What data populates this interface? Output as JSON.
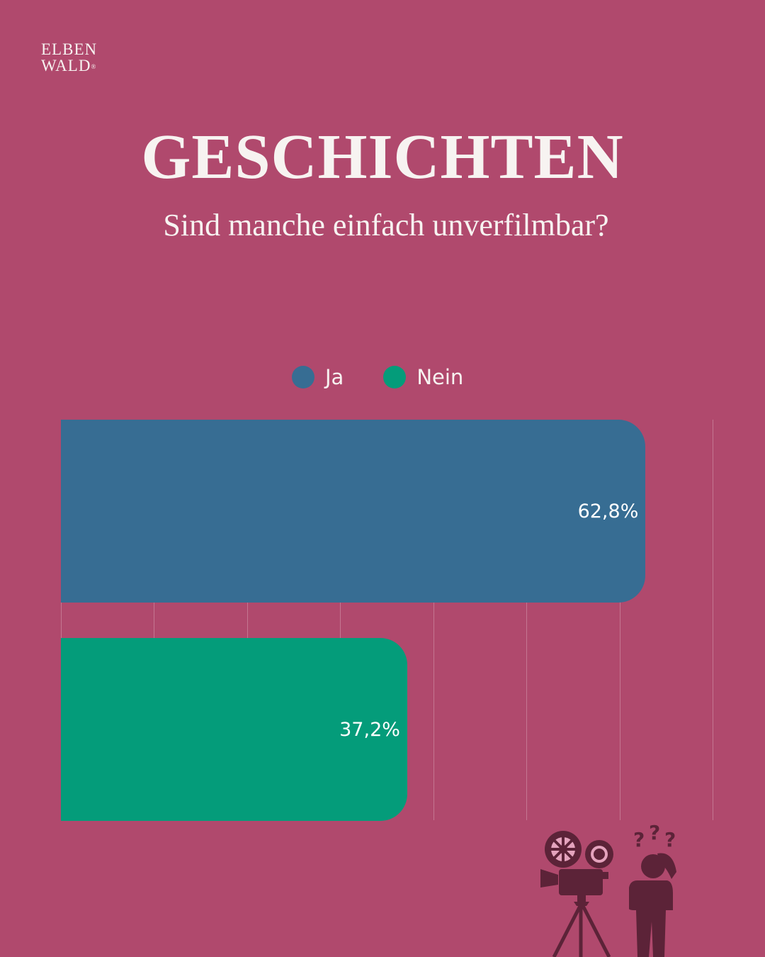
{
  "brand": {
    "line1": "ELBEN",
    "line2": "WALD",
    "mark": "®"
  },
  "header": {
    "title": "GESCHICHTEN",
    "subtitle": "Sind manche einfach unverfilmbar?"
  },
  "legend": [
    {
      "label": "Ja",
      "color": "#376d93"
    },
    {
      "label": "Nein",
      "color": "#049c7a"
    }
  ],
  "colors": {
    "background": "#b0496d",
    "text": "#f7f3f1",
    "illustration": "#5c2338"
  },
  "chart_data": {
    "type": "bar",
    "orientation": "horizontal",
    "title": "GESCHICHTEN",
    "subtitle": "Sind manche einfach unverfilmbar?",
    "categories": [
      "Ja",
      "Nein"
    ],
    "values": [
      62.8,
      37.2
    ],
    "value_labels": [
      "62,8%",
      "37,2%"
    ],
    "colors": [
      "#376d93",
      "#049c7a"
    ],
    "xlabel": "",
    "ylabel": "",
    "xlim": [
      0,
      70
    ],
    "grid": true,
    "grid_step": 10,
    "tick_labels_visible": false,
    "legend_position": "top"
  },
  "illustration": {
    "icons": [
      "film-camera-icon",
      "confused-person-icon"
    ],
    "text": "???"
  }
}
